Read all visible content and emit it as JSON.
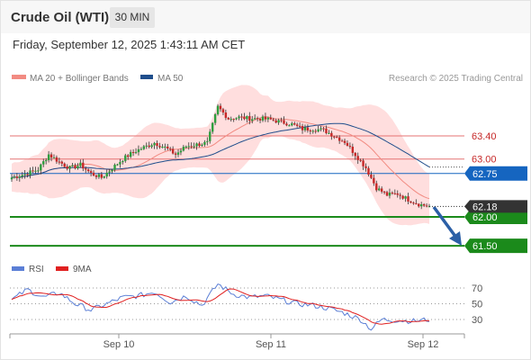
{
  "header": {
    "instrument": "Crude Oil (WTI)",
    "timeframe": "30 MIN",
    "datetime": "Friday, September 12, 2025 1:43:11 AM CET"
  },
  "legend": {
    "ma20_label": "MA 20 + Bollinger Bands",
    "ma50_label": "MA 50",
    "ma20_color": "#f28b82",
    "ma50_color": "#1f4e8c",
    "copyright": "Research © 2025 Trading Central"
  },
  "colors": {
    "up": "#2e9e3e",
    "down": "#c62828",
    "bollinger_fill": "#ffd6d6",
    "resistance": "#e57373",
    "pivot": "#1565c0",
    "support": "#1b8a1b",
    "arrow": "#2b5fa6",
    "rsi": "#5b7fd6",
    "rsi_ma": "#e02020"
  },
  "chart_data": {
    "type": "candlestick",
    "price_levels": [
      {
        "value": 63.4,
        "label": "63.40",
        "kind": "resistance"
      },
      {
        "value": 63.0,
        "label": "63.00",
        "kind": "resistance"
      },
      {
        "value": 62.75,
        "label": "62.75",
        "kind": "pivot"
      },
      {
        "value": 62.0,
        "label": "62.00",
        "kind": "support"
      },
      {
        "value": 61.5,
        "label": "61.50",
        "kind": "support"
      }
    ],
    "last_price": {
      "value": 62.18,
      "label": "62.18"
    },
    "x_ticks": [
      "Sep 10",
      "Sep 11",
      "Sep 12"
    ],
    "price_anchors": [
      [
        0,
        62.68
      ],
      [
        5,
        62.74
      ],
      [
        10,
        62.82
      ],
      [
        14,
        63.08
      ],
      [
        18,
        62.95
      ],
      [
        22,
        62.84
      ],
      [
        26,
        62.9
      ],
      [
        30,
        62.75
      ],
      [
        34,
        62.68
      ],
      [
        38,
        62.84
      ],
      [
        42,
        63.0
      ],
      [
        46,
        63.12
      ],
      [
        50,
        63.2
      ],
      [
        54,
        63.28
      ],
      [
        58,
        63.2
      ],
      [
        62,
        63.08
      ],
      [
        66,
        63.22
      ],
      [
        70,
        63.25
      ],
      [
        74,
        63.28
      ],
      [
        78,
        63.9
      ],
      [
        82,
        63.7
      ],
      [
        86,
        63.72
      ],
      [
        90,
        63.7
      ],
      [
        94,
        63.7
      ],
      [
        98,
        63.68
      ],
      [
        102,
        63.64
      ],
      [
        106,
        63.6
      ],
      [
        110,
        63.52
      ],
      [
        114,
        63.52
      ],
      [
        118,
        63.5
      ],
      [
        122,
        63.4
      ],
      [
        126,
        63.3
      ],
      [
        130,
        63.08
      ],
      [
        134,
        62.85
      ],
      [
        138,
        62.5
      ],
      [
        142,
        62.38
      ],
      [
        146,
        62.4
      ],
      [
        150,
        62.3
      ],
      [
        154,
        62.22
      ],
      [
        158,
        62.18
      ]
    ],
    "rsi": {
      "levels": [
        70,
        50,
        30
      ],
      "anchors": [
        [
          0,
          55
        ],
        [
          6,
          68
        ],
        [
          12,
          58
        ],
        [
          18,
          64
        ],
        [
          24,
          50
        ],
        [
          30,
          42
        ],
        [
          36,
          50
        ],
        [
          42,
          58
        ],
        [
          48,
          60
        ],
        [
          54,
          65
        ],
        [
          60,
          52
        ],
        [
          66,
          60
        ],
        [
          72,
          48
        ],
        [
          78,
          75
        ],
        [
          84,
          62
        ],
        [
          90,
          58
        ],
        [
          96,
          60
        ],
        [
          102,
          55
        ],
        [
          108,
          50
        ],
        [
          114,
          48
        ],
        [
          120,
          44
        ],
        [
          126,
          38
        ],
        [
          132,
          30
        ],
        [
          136,
          18
        ],
        [
          140,
          30
        ],
        [
          146,
          29
        ],
        [
          152,
          28
        ],
        [
          158,
          30
        ]
      ]
    }
  }
}
